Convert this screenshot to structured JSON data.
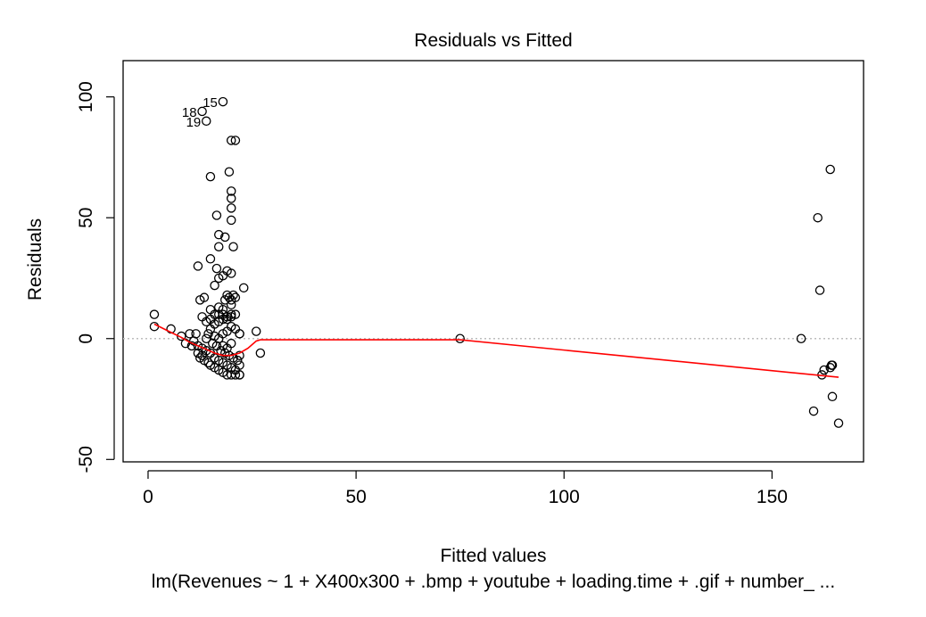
{
  "chart_data": {
    "type": "scatter",
    "title": "Residuals vs Fitted",
    "xlabel": "Fitted values",
    "ylabel": "Residuals",
    "subtitle": "lm(Revenues ~ 1 + X400x300 + .bmp + youtube + loading.time + .gif + number_ ...",
    "xlim": [
      -6,
      172
    ],
    "ylim": [
      -51,
      115
    ],
    "x_ticks": [
      0,
      50,
      100,
      150
    ],
    "x_tick_labels": [
      "0",
      "50",
      "100",
      "150"
    ],
    "y_ticks": [
      -50,
      0,
      50,
      100
    ],
    "y_tick_labels": [
      "-50",
      "0",
      "50",
      "100"
    ],
    "reference_line": {
      "y": 0,
      "style": "dotted",
      "color": "#bdbdbd"
    },
    "point_style": {
      "shape": "open-circle",
      "color": "#000000"
    },
    "smooth_color": "#ff0000",
    "labeled_points": [
      {
        "label": "15",
        "x": 18.0,
        "y": 98.0
      },
      {
        "label": "18",
        "x": 13.0,
        "y": 94.0
      },
      {
        "label": "19",
        "x": 14.0,
        "y": 90.0
      }
    ],
    "points": [
      [
        1.5,
        10
      ],
      [
        1.5,
        5
      ],
      [
        5.5,
        4
      ],
      [
        8,
        1
      ],
      [
        9,
        -2
      ],
      [
        10,
        2
      ],
      [
        10.5,
        -3
      ],
      [
        11,
        -1
      ],
      [
        11.5,
        2
      ],
      [
        12,
        -3
      ],
      [
        12,
        -6
      ],
      [
        12.5,
        -8
      ],
      [
        13,
        -4
      ],
      [
        13,
        -7
      ],
      [
        13.5,
        -9
      ],
      [
        14,
        -5
      ],
      [
        14,
        0
      ],
      [
        14.5,
        2
      ],
      [
        14.5,
        -10
      ],
      [
        15,
        -11
      ],
      [
        15,
        -6
      ],
      [
        15.5,
        -2
      ],
      [
        16,
        -12
      ],
      [
        16,
        -8
      ],
      [
        16.5,
        -3
      ],
      [
        17,
        -13
      ],
      [
        17,
        -9
      ],
      [
        17.5,
        -5
      ],
      [
        18,
        -14
      ],
      [
        18,
        -10
      ],
      [
        18.5,
        -6
      ],
      [
        19,
        -15
      ],
      [
        19,
        -11
      ],
      [
        19.5,
        -7
      ],
      [
        20,
        -15
      ],
      [
        20,
        -12
      ],
      [
        20.5,
        -8
      ],
      [
        21,
        -15
      ],
      [
        21,
        -13
      ],
      [
        21.5,
        -9
      ],
      [
        22,
        -15
      ],
      [
        22,
        -11
      ],
      [
        18,
        -3
      ],
      [
        19,
        -4
      ],
      [
        20,
        -2
      ],
      [
        17,
        0
      ],
      [
        16,
        1
      ],
      [
        18,
        2
      ],
      [
        19,
        3
      ],
      [
        20,
        5
      ],
      [
        21,
        4
      ],
      [
        22,
        2
      ],
      [
        15,
        4
      ],
      [
        16,
        6
      ],
      [
        17,
        7
      ],
      [
        18,
        8
      ],
      [
        19,
        9
      ],
      [
        20,
        10
      ],
      [
        21,
        10
      ],
      [
        14,
        7
      ],
      [
        15,
        8
      ],
      [
        16,
        10
      ],
      [
        17,
        10
      ],
      [
        18,
        10
      ],
      [
        19,
        8
      ],
      [
        20,
        9
      ],
      [
        13,
        9
      ],
      [
        12.5,
        16
      ],
      [
        13.5,
        17
      ],
      [
        15,
        12
      ],
      [
        17,
        13
      ],
      [
        18.5,
        16
      ],
      [
        19,
        18
      ],
      [
        20,
        16
      ],
      [
        21,
        17
      ],
      [
        20.5,
        18
      ],
      [
        20,
        14
      ],
      [
        19.5,
        17
      ],
      [
        18,
        12
      ],
      [
        23,
        21
      ],
      [
        16,
        22
      ],
      [
        17,
        25
      ],
      [
        18,
        26
      ],
      [
        19,
        28
      ],
      [
        20,
        27
      ],
      [
        16.5,
        29
      ],
      [
        12,
        30
      ],
      [
        15,
        33
      ],
      [
        17,
        38
      ],
      [
        20.5,
        38
      ],
      [
        17,
        43
      ],
      [
        18.5,
        42
      ],
      [
        20,
        49
      ],
      [
        16.5,
        51
      ],
      [
        20,
        54
      ],
      [
        20,
        58
      ],
      [
        20,
        61
      ],
      [
        19.5,
        69
      ],
      [
        15,
        67
      ],
      [
        20,
        82
      ],
      [
        21,
        82
      ],
      [
        13,
        94
      ],
      [
        14,
        90
      ],
      [
        18,
        98
      ],
      [
        26,
        3
      ],
      [
        27,
        -6
      ],
      [
        22,
        2
      ],
      [
        22,
        -7
      ],
      [
        22,
        -15
      ],
      [
        75,
        0
      ],
      [
        157,
        0
      ],
      [
        160,
        -30
      ],
      [
        161,
        50
      ],
      [
        161.5,
        20
      ],
      [
        162,
        -15
      ],
      [
        162.5,
        -13
      ],
      [
        164,
        -12
      ],
      [
        164.3,
        -11
      ],
      [
        164.5,
        -11
      ],
      [
        164,
        70
      ],
      [
        164.5,
        -24
      ],
      [
        166,
        -35
      ]
    ],
    "smooth_line": [
      [
        1.5,
        6
      ],
      [
        5,
        3
      ],
      [
        8,
        0.5
      ],
      [
        10,
        -1.5
      ],
      [
        12,
        -3
      ],
      [
        14,
        -4.5
      ],
      [
        16,
        -6
      ],
      [
        18,
        -7
      ],
      [
        20,
        -7
      ],
      [
        22,
        -6
      ],
      [
        24,
        -4
      ],
      [
        26,
        -1
      ],
      [
        27,
        -0.5
      ],
      [
        75,
        -0.5
      ],
      [
        166,
        -16
      ]
    ]
  }
}
